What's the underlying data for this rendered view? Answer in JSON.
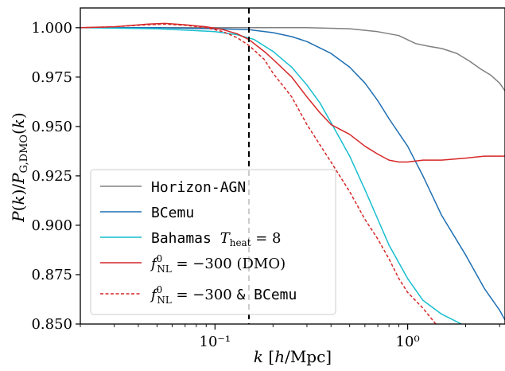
{
  "chart_data": {
    "type": "line",
    "xlabel": "k [h/Mpc]",
    "ylabel": "P(k) / P_G,DMO(k)",
    "x_scale": "log",
    "xlim": [
      0.02,
      3.2
    ],
    "ylim": [
      0.85,
      1.01
    ],
    "x_ticks": [
      {
        "value": 0.1,
        "label": "10⁻¹"
      },
      {
        "value": 1.0,
        "label": "10⁰"
      }
    ],
    "y_ticks": [
      {
        "value": 0.85,
        "label": "0.850"
      },
      {
        "value": 0.875,
        "label": "0.875"
      },
      {
        "value": 0.9,
        "label": "0.900"
      },
      {
        "value": 0.925,
        "label": "0.925"
      },
      {
        "value": 0.95,
        "label": "0.950"
      },
      {
        "value": 0.975,
        "label": "0.975"
      },
      {
        "value": 1.0,
        "label": "1.000"
      }
    ],
    "vline": {
      "x": 0.15,
      "style": "dashed",
      "color": "#000000"
    },
    "grid": false,
    "legend_position": "lower-left",
    "series": [
      {
        "name": "Horizon-AGN",
        "color": "#808080",
        "style": "solid",
        "points": [
          [
            0.02,
            1.0
          ],
          [
            0.1,
            1.0
          ],
          [
            0.3,
            1.0
          ],
          [
            0.5,
            0.9995
          ],
          [
            0.7,
            0.998
          ],
          [
            0.9,
            0.996
          ],
          [
            1.1,
            0.992
          ],
          [
            1.3,
            0.9905
          ],
          [
            1.5,
            0.9895
          ],
          [
            1.8,
            0.987
          ],
          [
            2.1,
            0.983
          ],
          [
            2.4,
            0.979
          ],
          [
            2.7,
            0.976
          ],
          [
            3.0,
            0.972
          ],
          [
            3.2,
            0.968
          ]
        ]
      },
      {
        "name": "BCemu",
        "color": "#1f6fb2",
        "style": "solid",
        "points": [
          [
            0.02,
            1.0
          ],
          [
            0.05,
            1.0
          ],
          [
            0.1,
            0.9995
          ],
          [
            0.15,
            0.999
          ],
          [
            0.2,
            0.9975
          ],
          [
            0.25,
            0.9955
          ],
          [
            0.3,
            0.993
          ],
          [
            0.4,
            0.987
          ],
          [
            0.5,
            0.98
          ],
          [
            0.6,
            0.972
          ],
          [
            0.7,
            0.963
          ],
          [
            0.8,
            0.954
          ],
          [
            1.0,
            0.94
          ],
          [
            1.2,
            0.925
          ],
          [
            1.5,
            0.905
          ],
          [
            2.0,
            0.885
          ],
          [
            2.5,
            0.868
          ],
          [
            3.0,
            0.857
          ],
          [
            3.2,
            0.852
          ]
        ]
      },
      {
        "name": "Bahamas T_heat = 8",
        "color": "#17becf",
        "style": "solid",
        "points": [
          [
            0.02,
            1.0
          ],
          [
            0.05,
            0.9995
          ],
          [
            0.08,
            0.9985
          ],
          [
            0.1,
            0.998
          ],
          [
            0.13,
            0.9965
          ],
          [
            0.16,
            0.994
          ],
          [
            0.2,
            0.988
          ],
          [
            0.25,
            0.98
          ],
          [
            0.3,
            0.971
          ],
          [
            0.35,
            0.962
          ],
          [
            0.4,
            0.952
          ],
          [
            0.5,
            0.935
          ],
          [
            0.6,
            0.918
          ],
          [
            0.7,
            0.903
          ],
          [
            0.8,
            0.89
          ],
          [
            1.0,
            0.873
          ],
          [
            1.2,
            0.862
          ],
          [
            1.5,
            0.855
          ],
          [
            1.9,
            0.85
          ]
        ]
      },
      {
        "name": "f_NL^0 = −300 (DMO)",
        "color": "#d62728",
        "style": "solid",
        "points": [
          [
            0.02,
            1.0
          ],
          [
            0.03,
            1.0005
          ],
          [
            0.045,
            1.0018
          ],
          [
            0.055,
            1.0022
          ],
          [
            0.07,
            1.0015
          ],
          [
            0.09,
            1.0005
          ],
          [
            0.11,
            0.999
          ],
          [
            0.13,
            0.997
          ],
          [
            0.15,
            0.994
          ],
          [
            0.18,
            0.988
          ],
          [
            0.2,
            0.984
          ],
          [
            0.25,
            0.975
          ],
          [
            0.3,
            0.965
          ],
          [
            0.35,
            0.957
          ],
          [
            0.4,
            0.951
          ],
          [
            0.5,
            0.946
          ],
          [
            0.6,
            0.94
          ],
          [
            0.7,
            0.936
          ],
          [
            0.8,
            0.933
          ],
          [
            0.9,
            0.932
          ],
          [
            1.0,
            0.932
          ],
          [
            1.2,
            0.933
          ],
          [
            1.5,
            0.933
          ],
          [
            2.0,
            0.934
          ],
          [
            2.5,
            0.935
          ],
          [
            3.2,
            0.935
          ]
        ]
      },
      {
        "name": "f_NL^0 = −300 & BCemu",
        "color": "#d62728",
        "style": "dashed",
        "points": [
          [
            0.02,
            1.0
          ],
          [
            0.03,
            1.0005
          ],
          [
            0.045,
            1.0015
          ],
          [
            0.055,
            1.0018
          ],
          [
            0.07,
            1.0012
          ],
          [
            0.09,
            1.0
          ],
          [
            0.11,
            0.998
          ],
          [
            0.13,
            0.995
          ],
          [
            0.15,
            0.991
          ],
          [
            0.18,
            0.984
          ],
          [
            0.2,
            0.977
          ],
          [
            0.25,
            0.965
          ],
          [
            0.3,
            0.951
          ],
          [
            0.4,
            0.932
          ],
          [
            0.5,
            0.917
          ],
          [
            0.6,
            0.903
          ],
          [
            0.7,
            0.893
          ],
          [
            0.8,
            0.883
          ],
          [
            0.9,
            0.873
          ],
          [
            1.0,
            0.866
          ],
          [
            1.2,
            0.858
          ],
          [
            1.4,
            0.85
          ]
        ]
      }
    ],
    "legend": {
      "entries": [
        {
          "text": "Horizon-AGN",
          "sub": "",
          "rest": ""
        },
        {
          "text": "BCemu",
          "sub": "",
          "rest": ""
        },
        {
          "text": "Bahamas",
          "sub": "",
          "rest": ""
        },
        {
          "text": "",
          "sub": "",
          "rest": ""
        },
        {
          "text": "",
          "sub": "",
          "rest": ""
        }
      ]
    }
  }
}
